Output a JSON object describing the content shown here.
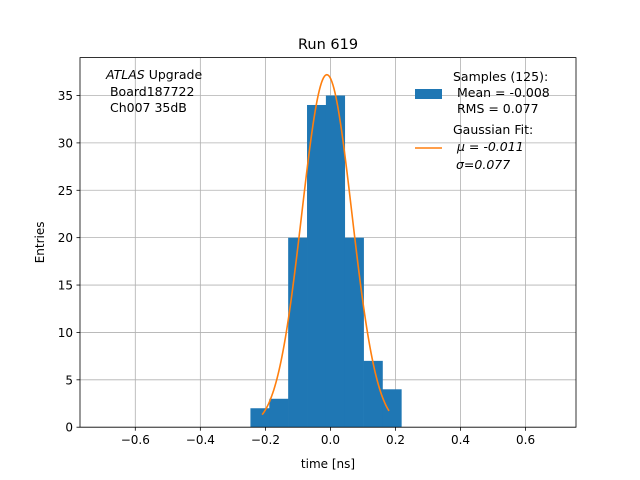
{
  "chart_data": {
    "type": "bar",
    "title": "Run 619",
    "xlabel": "time [ns]",
    "ylabel": "Entries",
    "xlim": [
      -0.77,
      0.755
    ],
    "ylim": [
      0,
      39
    ],
    "grid": true,
    "x_ticks": [
      -0.6,
      -0.4,
      -0.2,
      0.0,
      0.2,
      0.4,
      0.6
    ],
    "x_tick_labels": [
      "−0.6",
      "−0.4",
      "−0.2",
      "0.0",
      "0.2",
      "0.4",
      "0.6"
    ],
    "y_ticks": [
      0,
      5,
      10,
      15,
      20,
      25,
      30,
      35
    ],
    "y_tick_labels": [
      "0",
      "5",
      "10",
      "15",
      "20",
      "25",
      "30",
      "35"
    ],
    "histogram": {
      "name": "Samples (125):",
      "color": "#1f77b4",
      "bin_edges": [
        -0.246,
        -0.188,
        -0.13,
        -0.072,
        -0.014,
        0.044,
        0.102,
        0.16,
        0.218
      ],
      "counts": [
        2,
        3,
        20,
        34,
        35,
        20,
        7,
        4
      ]
    },
    "fit": {
      "name": "Gaussian Fit:",
      "color": "#ff7f0e",
      "mu": -0.011,
      "sigma": 0.077,
      "amplitude": 37.2,
      "x_range": [
        -0.21,
        0.18
      ]
    },
    "legend": {
      "placement": "upper right",
      "hist_lines": [
        "Samples (125):",
        " Mean = -0.008",
        " RMS = 0.077"
      ],
      "fit_lines": [
        "Gaussian Fit:",
        " μ = -0.011",
        "σ=0.077"
      ]
    },
    "annotation": {
      "italic": "ATLAS",
      "rest": " Upgrade",
      "line2": " Board187722",
      "line3": " Ch007 35dB"
    }
  }
}
